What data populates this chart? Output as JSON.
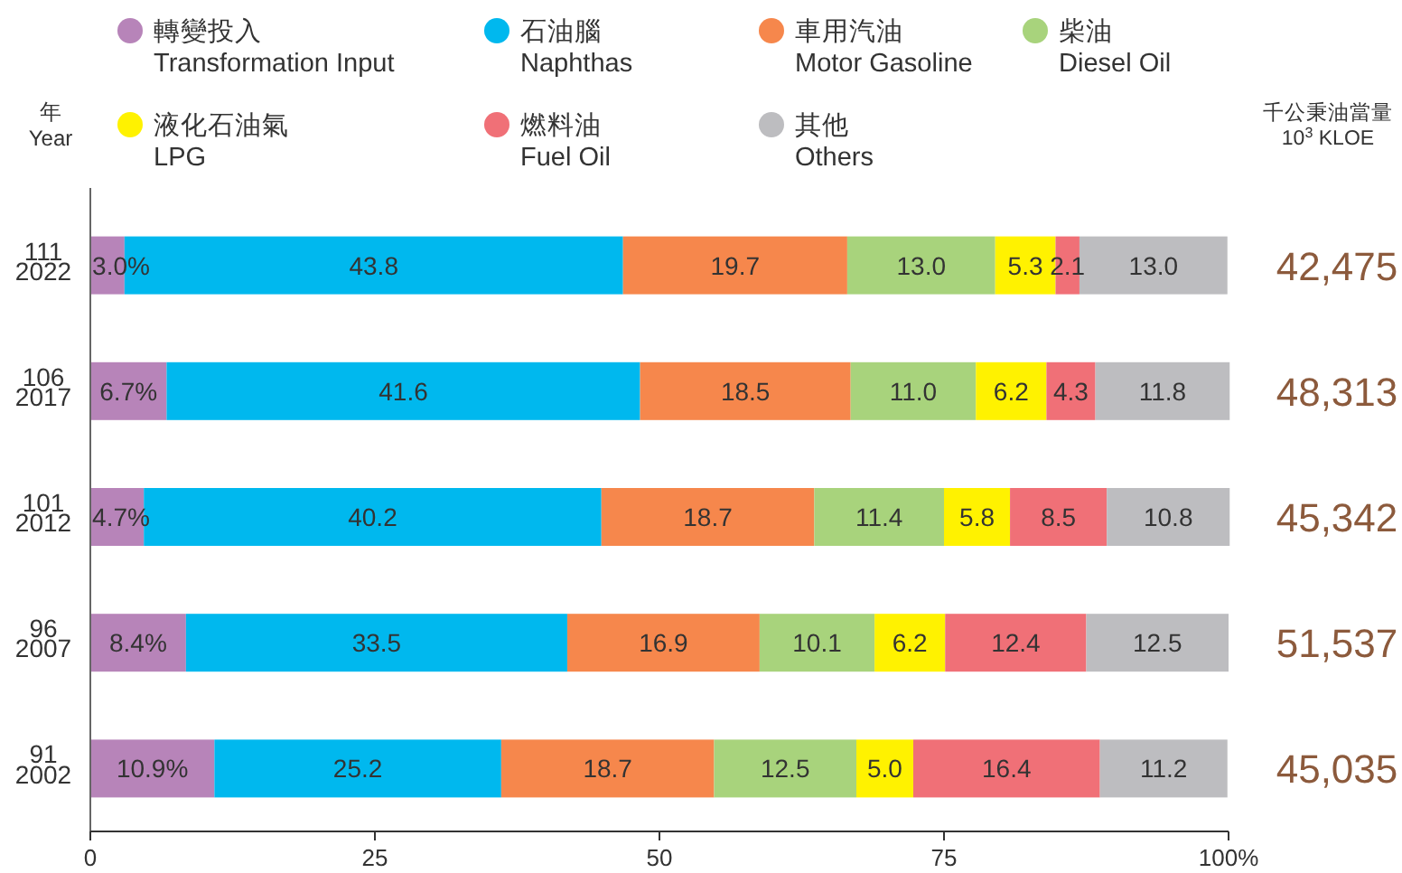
{
  "chart_data": {
    "type": "bar",
    "orientation": "horizontal",
    "stacked": true,
    "legend": "top",
    "ylabel": "年\nYear",
    "categories": [
      "111\n2022",
      "106\n2017",
      "101\n2012",
      "96\n2007",
      "91\n2002"
    ],
    "series": [
      {
        "name": "轉變投入\nTransformation Input",
        "color": "#b784b9",
        "values": [
          3.0,
          6.7,
          4.7,
          8.4,
          10.9
        ],
        "value_labels": [
          "3.0%",
          "6.7%",
          "4.7%",
          "8.4%",
          "10.9%"
        ]
      },
      {
        "name": "石油腦\nNaphthas",
        "color": "#00b8ee",
        "values": [
          43.8,
          41.6,
          40.2,
          33.5,
          25.2
        ],
        "value_labels": [
          "43.8",
          "41.6",
          "40.2",
          "33.5",
          "25.2"
        ]
      },
      {
        "name": "車用汽油\nMotor Gasoline",
        "color": "#f6874c",
        "values": [
          19.7,
          18.5,
          18.7,
          16.9,
          18.7
        ],
        "value_labels": [
          "19.7",
          "18.5",
          "18.7",
          "16.9",
          "18.7"
        ]
      },
      {
        "name": "柴油\nDiesel Oil",
        "color": "#a8d37c",
        "values": [
          13.0,
          11.0,
          11.4,
          10.1,
          12.5
        ],
        "value_labels": [
          "13.0",
          "11.0",
          "11.4",
          "10.1",
          "12.5"
        ]
      },
      {
        "name": "液化石油氣\nLPG",
        "color": "#fff200",
        "values": [
          5.3,
          6.2,
          5.8,
          6.2,
          5.0
        ],
        "value_labels": [
          "5.3",
          "6.2",
          "5.8",
          "6.2",
          "5.0"
        ]
      },
      {
        "name": "燃料油\nFuel Oil",
        "color": "#f07077",
        "values": [
          2.1,
          4.3,
          8.5,
          12.4,
          16.4
        ],
        "value_labels": [
          "2.1",
          "4.3",
          "8.5",
          "12.4",
          "16.4"
        ]
      },
      {
        "name": "其他\nOthers",
        "color": "#bdbdc0",
        "values": [
          13.0,
          11.8,
          10.8,
          12.5,
          11.2
        ],
        "value_labels": [
          "13.0",
          "11.8",
          "10.8",
          "12.5",
          "11.2"
        ]
      }
    ],
    "annotations": [
      "千公秉油當量\n10$^{3}$ KLOE",
      "42,475",
      "48,313",
      "45,342",
      "51,537",
      "45,035"
    ],
    "xlim": [
      0,
      100
    ],
    "xticks": [
      0,
      25,
      50,
      75,
      {
        "value": 100,
        "label": "100%"
      }
    ]
  }
}
